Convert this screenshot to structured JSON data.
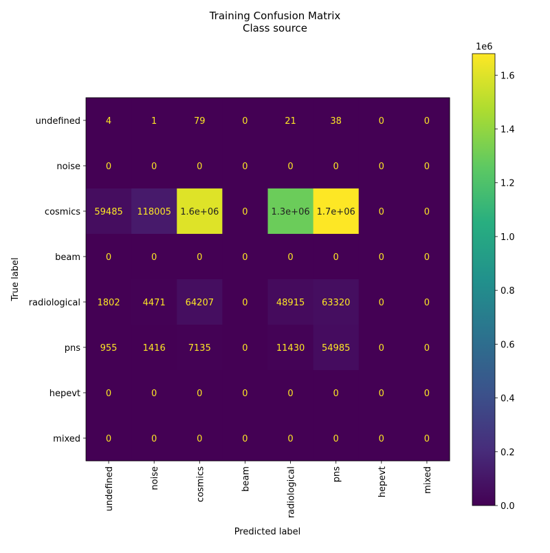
{
  "chart_data": {
    "type": "heatmap",
    "title": "Training Confusion Matrix",
    "subtitle": "Class source",
    "xlabel": "Predicted label",
    "ylabel": "True label",
    "classes": [
      "undefined",
      "noise",
      "cosmics",
      "beam",
      "radiological",
      "pns",
      "hepevt",
      "mixed"
    ],
    "values": [
      [
        4,
        1,
        79,
        0,
        21,
        38,
        0,
        0
      ],
      [
        0,
        0,
        0,
        0,
        0,
        0,
        0,
        0
      ],
      [
        59485,
        118005,
        1600000,
        0,
        1300000,
        1700000,
        0,
        0
      ],
      [
        0,
        0,
        0,
        0,
        0,
        0,
        0,
        0
      ],
      [
        1802,
        4471,
        64207,
        0,
        48915,
        63320,
        0,
        0
      ],
      [
        955,
        1416,
        7135,
        0,
        11430,
        54985,
        0,
        0
      ],
      [
        0,
        0,
        0,
        0,
        0,
        0,
        0,
        0
      ],
      [
        0,
        0,
        0,
        0,
        0,
        0,
        0,
        0
      ]
    ],
    "cell_labels": [
      [
        "4",
        "1",
        "79",
        "0",
        "21",
        "38",
        "0",
        "0"
      ],
      [
        "0",
        "0",
        "0",
        "0",
        "0",
        "0",
        "0",
        "0"
      ],
      [
        "59485",
        "118005",
        "1.6e+06",
        "0",
        "1.3e+06",
        "1.7e+06",
        "0",
        "0"
      ],
      [
        "0",
        "0",
        "0",
        "0",
        "0",
        "0",
        "0",
        "0"
      ],
      [
        "1802",
        "4471",
        "64207",
        "0",
        "48915",
        "63320",
        "0",
        "0"
      ],
      [
        "955",
        "1416",
        "7135",
        "0",
        "11430",
        "54985",
        "0",
        "0"
      ],
      [
        "0",
        "0",
        "0",
        "0",
        "0",
        "0",
        "0",
        "0"
      ],
      [
        "0",
        "0",
        "0",
        "0",
        "0",
        "0",
        "0",
        "0"
      ]
    ],
    "colorbar": {
      "colormap": "viridis",
      "min": 0,
      "max": 1680000,
      "multiplier_label": "1e6",
      "ticks": [
        0,
        0.2,
        0.4,
        0.6,
        0.8,
        1.0,
        1.2,
        1.4,
        1.6
      ],
      "tick_labels": [
        "0.0",
        "0.2",
        "0.4",
        "0.6",
        "0.8",
        "1.0",
        "1.2",
        "1.4",
        "1.6"
      ]
    },
    "grid": false
  }
}
